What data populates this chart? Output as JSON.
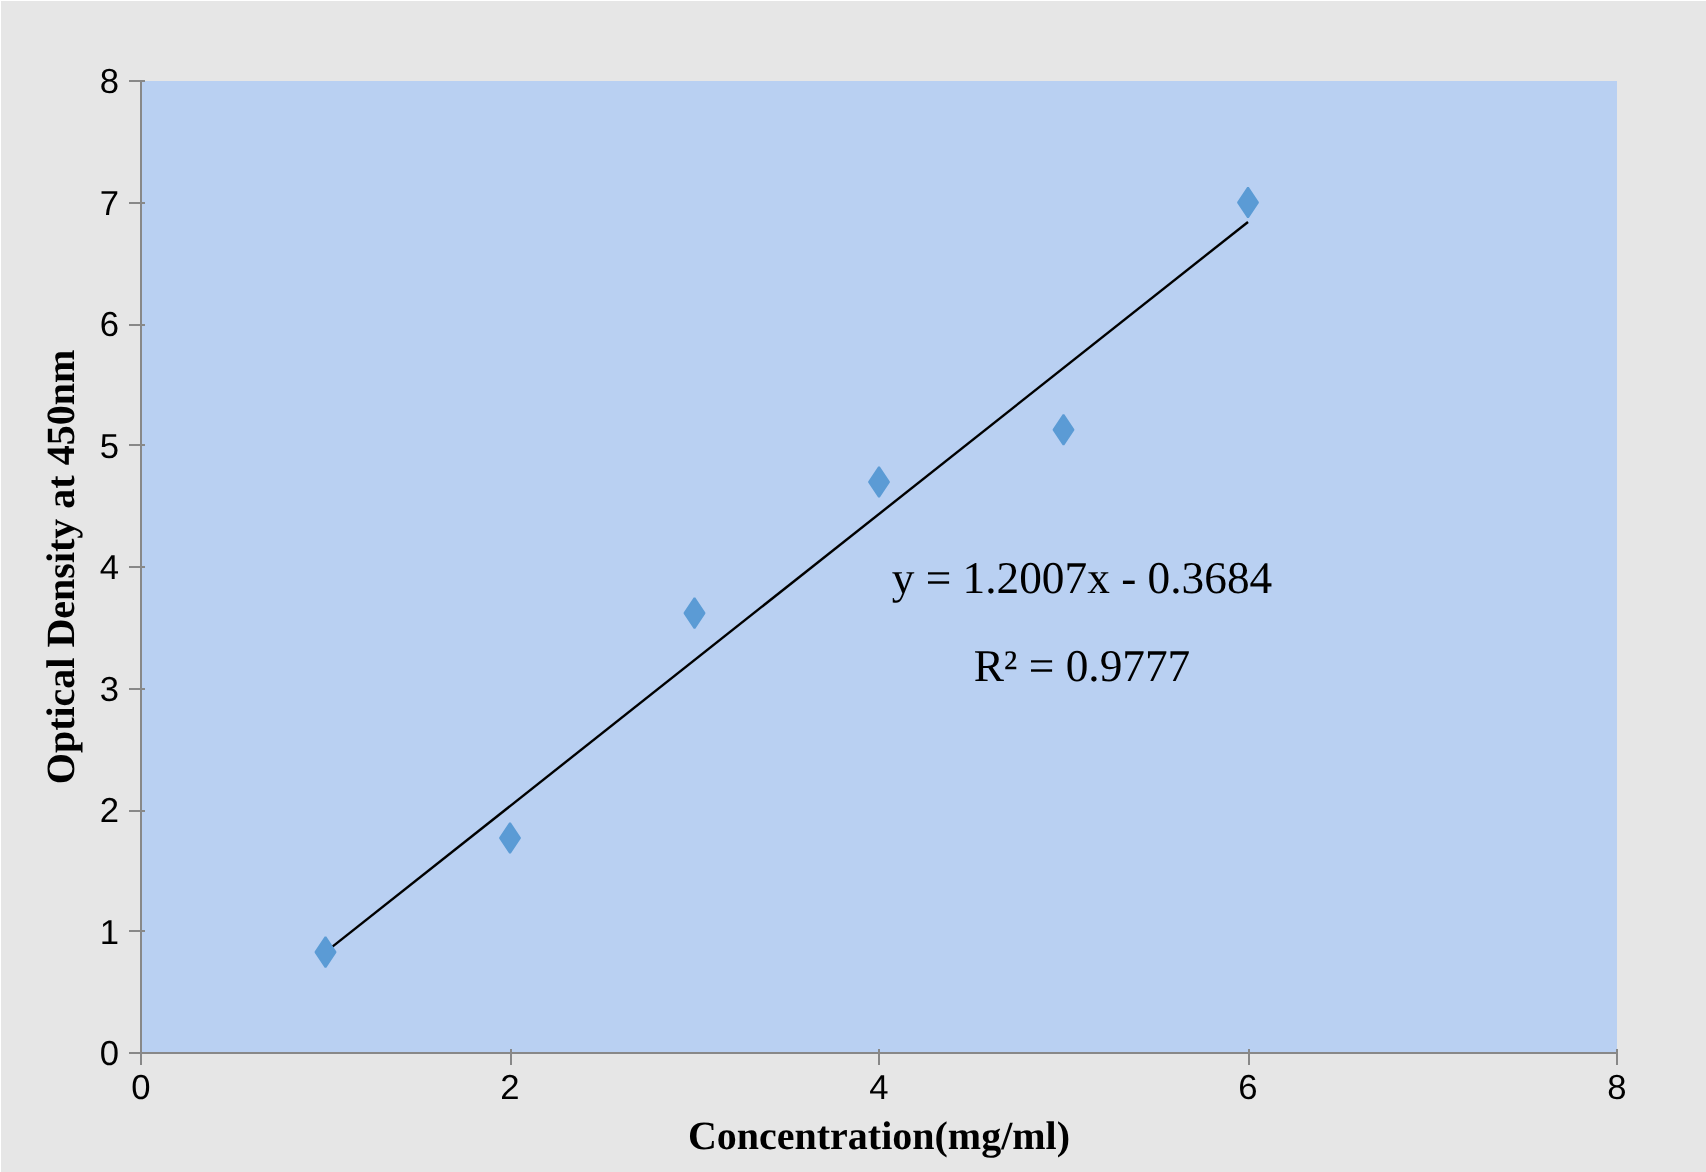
{
  "chart_data": {
    "type": "scatter",
    "xlabel": "Concentration(mg/ml)",
    "ylabel": "Optical Density at 450nm",
    "x": [
      1,
      2,
      3,
      4,
      5,
      6
    ],
    "series": [
      {
        "color": "#5b9bd5",
        "marker": "diamond",
        "values": [
          0.83,
          1.77,
          3.62,
          4.7,
          5.13,
          7.0
        ]
      },
      {
        "type": "line",
        "color": "#000000",
        "x": [
          1,
          6
        ],
        "values": [
          0.83,
          6.84
        ]
      }
    ],
    "annotations": [
      "y = 1.2007x - 0.3684",
      "R² = 0.9777"
    ],
    "xlim": [
      0,
      8
    ],
    "ylim": [
      0,
      8
    ],
    "xticks": [
      0,
      2,
      4,
      6,
      8
    ],
    "yticks": [
      0,
      1,
      2,
      3,
      4,
      5,
      6,
      7,
      8
    ],
    "grid": false
  }
}
